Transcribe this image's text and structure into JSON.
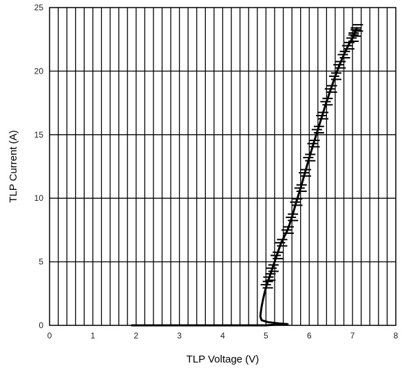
{
  "chart_data": {
    "type": "line",
    "title": "",
    "xlabel": "TLP Voltage (V)",
    "ylabel": "TLP Current (A)",
    "xlim": [
      0,
      8
    ],
    "ylim": [
      0,
      25
    ],
    "x_ticks": [
      "0",
      "1",
      "2",
      "3",
      "4",
      "5",
      "6",
      "7",
      "8"
    ],
    "y_ticks": [
      "0",
      "5",
      "10",
      "15",
      "20",
      "25"
    ],
    "x_minor_step": 0.2,
    "y_major_step": 5,
    "grid": true,
    "legend": "none",
    "line_color": "#000000",
    "series": [
      {
        "x": [
          1.9,
          3.0,
          4.0,
          4.8,
          5.0,
          5.2,
          5.4,
          5.5,
          5.3,
          5.05,
          4.9,
          4.87,
          4.88,
          4.9,
          4.93,
          4.97,
          5.02,
          5.08,
          5.15,
          5.25,
          5.35,
          5.5,
          5.6,
          5.7,
          5.8,
          5.9,
          6.0,
          6.1,
          6.2,
          6.3,
          6.4,
          6.5,
          6.6,
          6.7,
          6.8,
          6.9,
          7.0,
          7.05,
          7.1
        ],
        "y": [
          0.0,
          0.0,
          0.0,
          0.0,
          0.0,
          0.05,
          0.08,
          0.1,
          0.15,
          0.25,
          0.4,
          0.7,
          1.0,
          1.5,
          2.0,
          2.6,
          3.2,
          3.8,
          4.5,
          5.5,
          6.5,
          7.5,
          8.5,
          9.7,
          10.8,
          12.0,
          13.2,
          14.3,
          15.4,
          16.5,
          17.6,
          18.6,
          19.6,
          20.5,
          21.3,
          22.0,
          22.6,
          23.0,
          23.4
        ]
      }
    ]
  }
}
